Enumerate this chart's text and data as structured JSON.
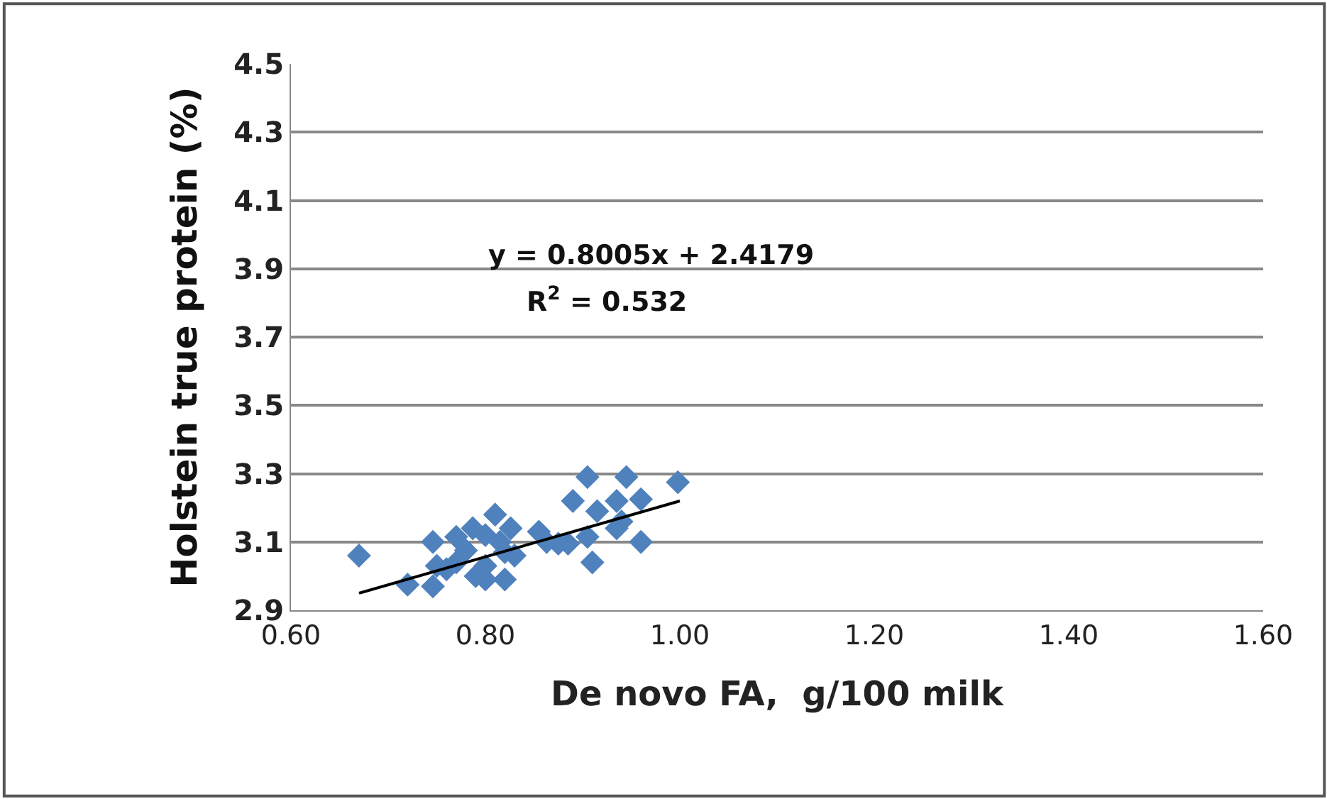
{
  "chart_data": {
    "type": "scatter",
    "xlabel": "De novo FA,  g/100 milk",
    "ylabel": "Holstein true protein (%)",
    "annotations": [
      "y = 0.8005x + 2.4179",
      "R$^{2}$ = 0.532"
    ],
    "series": [
      {
        "color": "#4f81bd",
        "marker": "diamond",
        "x": [
          0.67,
          0.72,
          0.746,
          0.746,
          0.75,
          0.77,
          0.787,
          0.78,
          0.77,
          0.79,
          0.8,
          0.81,
          0.8,
          0.815,
          0.826,
          0.82,
          0.82,
          0.855,
          0.863,
          0.875,
          0.885,
          0.89,
          0.905,
          0.905,
          0.91,
          0.915,
          0.935,
          0.935,
          0.945,
          0.96,
          0.96,
          0.998,
          0.94,
          0.8,
          0.76,
          0.83
        ],
        "values": [
          3.06,
          2.975,
          2.97,
          3.1,
          3.03,
          3.115,
          3.14,
          3.075,
          3.04,
          3.0,
          2.99,
          3.18,
          3.03,
          3.1,
          3.14,
          2.99,
          3.07,
          3.13,
          3.1,
          3.095,
          3.095,
          3.22,
          3.29,
          3.115,
          3.04,
          3.19,
          3.22,
          3.14,
          3.29,
          3.225,
          3.1,
          3.275,
          3.16,
          3.12,
          3.02,
          3.06
        ]
      },
      {
        "type": "line",
        "color": "#000000",
        "x": [
          0.67,
          1.0
        ],
        "values": [
          2.95,
          3.22
        ]
      }
    ],
    "xlim": [
      0.6,
      1.6
    ],
    "xticks": [
      {
        "value": 0.6,
        "label": "0.60"
      },
      {
        "value": 0.8,
        "label": "0.80"
      },
      {
        "value": 1.0,
        "label": "1.00"
      },
      {
        "value": 1.2,
        "label": "1.20"
      },
      {
        "value": 1.4,
        "label": "1.40"
      },
      {
        "value": 1.6,
        "label": "1.60"
      }
    ],
    "ylim": [
      2.9,
      4.5
    ],
    "yticks": [
      2.9,
      3.1,
      3.3,
      3.5,
      3.7,
      3.9,
      4.1,
      4.3,
      4.5
    ],
    "grid": "y"
  }
}
